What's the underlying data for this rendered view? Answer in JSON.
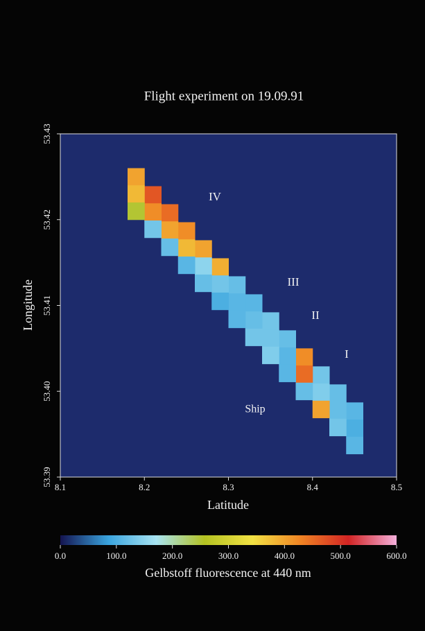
{
  "chart_data": {
    "type": "heatmap",
    "title": "Flight experiment on 19.09.91",
    "x_label": "Latitude",
    "y_label": "Longitude",
    "xlim": [
      8.1,
      8.5
    ],
    "xticks": [
      8.1,
      8.2,
      8.3,
      8.4,
      8.5
    ],
    "ylim": [
      53.39,
      53.43
    ],
    "yticks": [
      53.39,
      {
        "value": 53.4,
        "label": "53.40"
      },
      53.41,
      53.42,
      53.43
    ],
    "background": "#1d2b6c",
    "colorscale": [
      "#141450",
      "#3aa4de",
      "#a8e4f2",
      "#b4c222",
      "#f2e244",
      "#f08424",
      "#d22424",
      "#f4b0dc"
    ],
    "colorbar_label": "Gelbstoff fluorescence at 440 nm",
    "colorbar_lim": [
      0,
      600
    ],
    "colorbar_ticks": [
      {
        "value": 0,
        "label": "0.0"
      },
      {
        "value": 100,
        "label": "100.0"
      },
      {
        "value": 200,
        "label": "200.0"
      },
      {
        "value": 300,
        "label": "300.0"
      },
      {
        "value": 400,
        "label": "400.0"
      },
      {
        "value": 500,
        "label": "500.0"
      },
      {
        "value": 600,
        "label": "600.0"
      }
    ],
    "annotations": [
      "IV",
      "III",
      "II",
      "I",
      "Ship"
    ],
    "cells": {
      "x": [
        8.19,
        8.21,
        8.23,
        8.25,
        8.27,
        8.29,
        8.31,
        8.33,
        8.35,
        8.37,
        8.39,
        8.41,
        8.43,
        8.45,
        8.19,
        8.21,
        8.23,
        8.25,
        8.27,
        8.29,
        8.31,
        8.33,
        8.35,
        8.37,
        8.39,
        8.41,
        8.43,
        8.45,
        8.19,
        8.21,
        8.23,
        8.25,
        8.27,
        8.29,
        8.31,
        8.33,
        8.35,
        8.37,
        8.39,
        8.41,
        8.43,
        8.45
      ],
      "y": [
        53.425,
        53.4229,
        53.4208,
        53.4187,
        53.4166,
        53.4145,
        53.4124,
        53.4103,
        53.4082,
        53.4061,
        53.404,
        53.4019,
        53.3998,
        53.3977,
        53.423,
        53.4209,
        53.4188,
        53.4167,
        53.4146,
        53.4125,
        53.4104,
        53.4083,
        53.4062,
        53.4041,
        53.402,
        53.3999,
        53.3978,
        53.3957,
        53.421,
        53.4189,
        53.4168,
        53.4147,
        53.4126,
        53.4105,
        53.4084,
        53.4063,
        53.4042,
        53.4021,
        53.4,
        53.3979,
        53.3958,
        53.3937
      ],
      "values": [
        400,
        470,
        450,
        420,
        400,
        390,
        120,
        110,
        130,
        120,
        420,
        130,
        120,
        110,
        380,
        420,
        400,
        380,
        150,
        130,
        110,
        120,
        130,
        110,
        450,
        140,
        120,
        100,
        250,
        130,
        120,
        110,
        120,
        100,
        110,
        130,
        140,
        110,
        120,
        400,
        130,
        110
      ]
    }
  }
}
